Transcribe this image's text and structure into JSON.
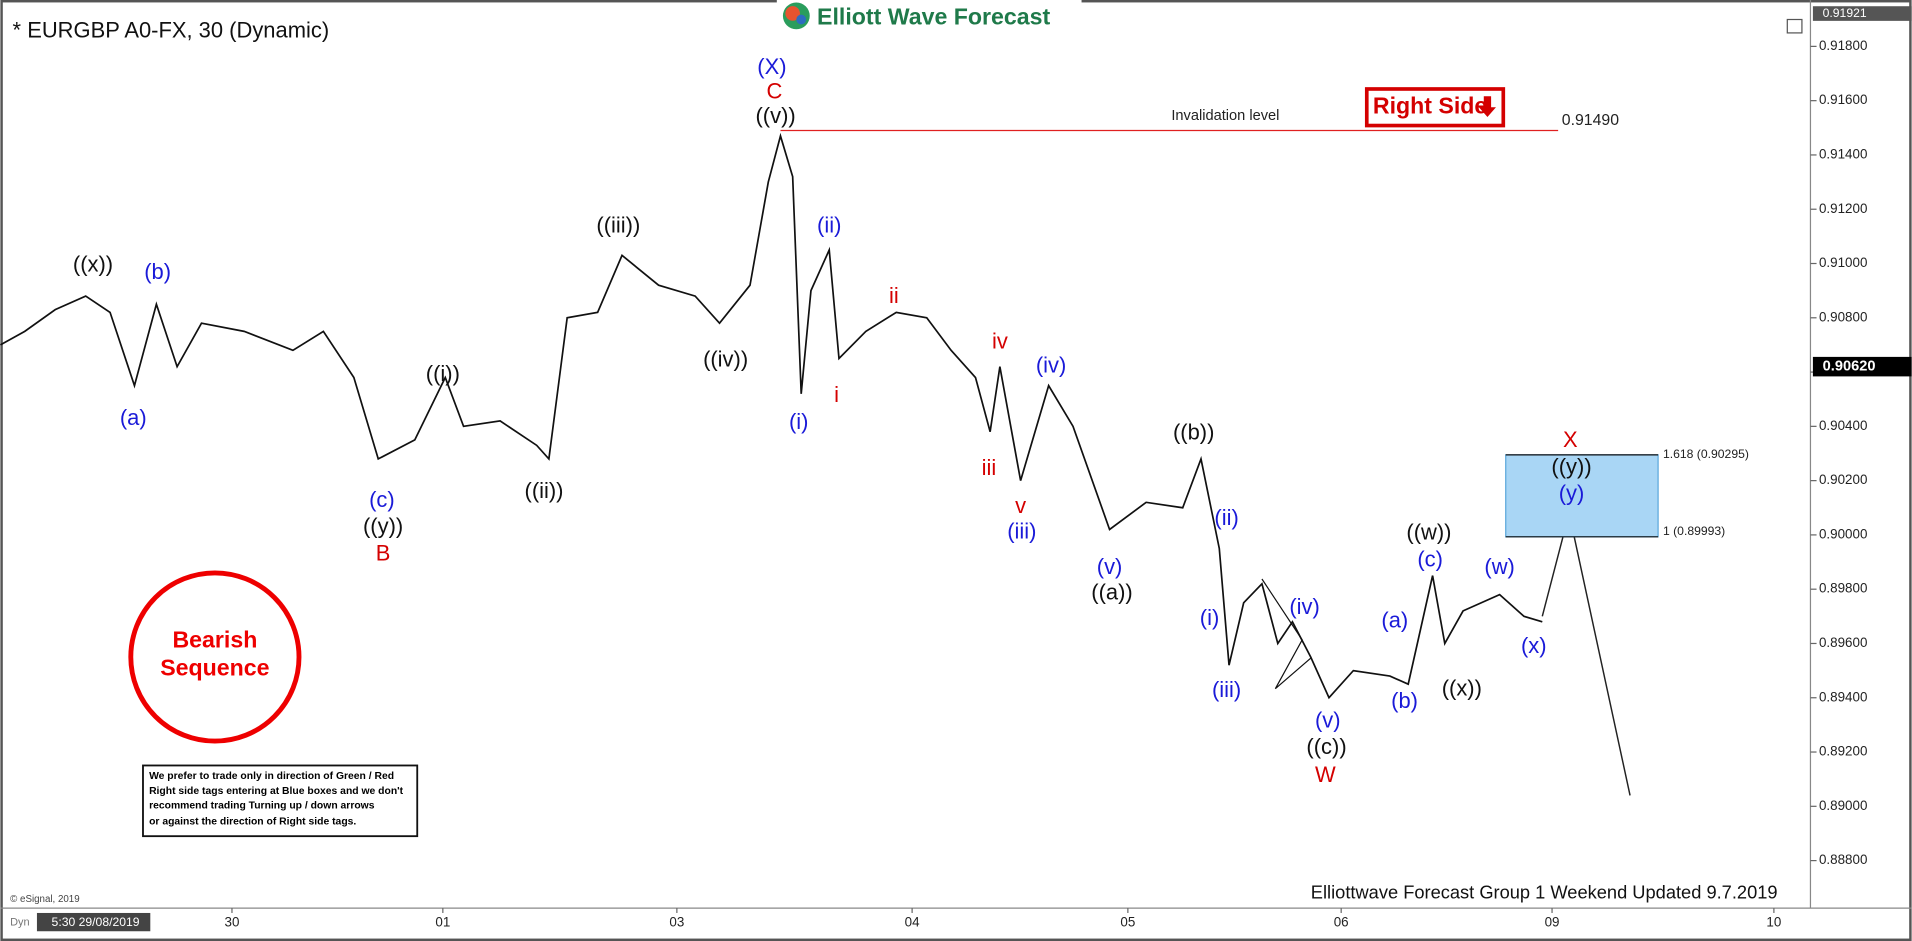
{
  "chart_data": {
    "type": "line",
    "title": "* EURGBP A0-FX, 30 (Dynamic)",
    "logo": "Elliott Wave Forecast",
    "xlim": [
      0,
      148.5
    ],
    "xticks": [
      {
        "value": 19.0,
        "label": "30"
      },
      {
        "value": 36.3,
        "label": "01"
      },
      {
        "value": 55.5,
        "label": "03"
      },
      {
        "value": 74.8,
        "label": "04"
      },
      {
        "value": 92.5,
        "label": "05"
      },
      {
        "value": 110.0,
        "label": "06"
      },
      {
        "value": 127.3,
        "label": "09"
      },
      {
        "value": 145.5,
        "label": "10"
      }
    ],
    "ylim": [
      0.88625,
      0.91926
    ],
    "yticks": [
      {
        "value": 0.888,
        "label": "0.88800"
      },
      {
        "value": 0.89,
        "label": "0.89000"
      },
      {
        "value": 0.892,
        "label": "0.89200"
      },
      {
        "value": 0.894,
        "label": "0.89400"
      },
      {
        "value": 0.896,
        "label": "0.89600"
      },
      {
        "value": 0.898,
        "label": "0.89800"
      },
      {
        "value": 0.9,
        "label": "0.90000"
      },
      {
        "value": 0.902,
        "label": "0.90200"
      },
      {
        "value": 0.904,
        "label": "0.90400"
      },
      {
        "value": 0.906,
        "label": "0.90600"
      },
      {
        "value": 0.908,
        "label": "0.90800"
      },
      {
        "value": 0.91,
        "label": "0.91000"
      },
      {
        "value": 0.912,
        "label": "0.91200"
      },
      {
        "value": 0.914,
        "label": "0.91400"
      },
      {
        "value": 0.916,
        "label": "0.91600"
      },
      {
        "value": 0.918,
        "label": "0.91800"
      }
    ],
    "series": [
      {
        "color": "#111111",
        "x": [
          0,
          2,
          4.5,
          7,
          9,
          11,
          12.8,
          14.5,
          16.5,
          20,
          24,
          26.5,
          29,
          31,
          34,
          36.5,
          38,
          41,
          44,
          45,
          46.5,
          49,
          51,
          54,
          57,
          59,
          61.5,
          63,
          64,
          65,
          65.7,
          66.5,
          68,
          68.8,
          71,
          73.5,
          76,
          78,
          80,
          81.2,
          82,
          83.7,
          86,
          88,
          91,
          94,
          97,
          98.5,
          100,
          100.8,
          102,
          103.5,
          104.8,
          106,
          107.5,
          109,
          111,
          114,
          115.5,
          117.5,
          118.5,
          120,
          123,
          125,
          126.5
        ],
        "values": [
          0.907,
          0.9075,
          0.9083,
          0.9088,
          0.9082,
          0.9055,
          0.9085,
          0.9062,
          0.9078,
          0.9075,
          0.9068,
          0.9075,
          0.9058,
          0.9028,
          0.9035,
          0.9058,
          0.904,
          0.9042,
          0.9033,
          0.9028,
          0.908,
          0.9082,
          0.9103,
          0.9092,
          0.9088,
          0.9078,
          0.9092,
          0.913,
          0.9147,
          0.9132,
          0.9052,
          0.909,
          0.9105,
          0.9065,
          0.9075,
          0.9082,
          0.908,
          0.9068,
          0.9058,
          0.9038,
          0.9062,
          0.902,
          0.9055,
          0.904,
          0.9002,
          0.9012,
          0.901,
          0.9028,
          0.8995,
          0.8952,
          0.8975,
          0.8982,
          0.896,
          0.8968,
          0.8955,
          0.894,
          0.895,
          0.8948,
          0.8945,
          0.8985,
          0.896,
          0.8972,
          0.8978,
          0.897,
          0.8968
        ]
      },
      {
        "color": "#222222",
        "x": [
          126.5,
          128.7,
          133.7
        ],
        "values": [
          0.897,
          0.9008,
          0.8904
        ]
      }
    ],
    "invalidation": {
      "value": 0.9149,
      "label": "0.91490",
      "text": "Invalidation level"
    },
    "target_box": {
      "top": {
        "value": 0.90295,
        "label": "1.618 (0.90295)"
      },
      "bottom": {
        "value": 0.89993,
        "label": "1 (0.89993)"
      },
      "color": "#a9d6f5"
    },
    "last_price": {
      "value": 0.9062,
      "label": "0.90620"
    },
    "top_price": 0.91921,
    "right_side": "Right Side",
    "sequence": [
      "Bearish",
      "Sequence"
    ],
    "note": [
      "We prefer to trade only in direction of Green / Red",
      "Right side tags entering at Blue boxes and we don't",
      "recommend trading Turning up / down arrows",
      "or against the direction of Right side tags."
    ],
    "copyright": "© eSignal, 2019",
    "footer": "Elliottwave Forecast Group 1 Weekend Updated 9.7.2019",
    "dyn": "Dyn",
    "cursor_time": "5:30 29/08/2019",
    "annotations": [
      "((x))",
      "(b)",
      "(a)",
      "(c)",
      "((y))",
      "B",
      "((i))",
      "((ii))",
      "((iii))",
      "((iv))",
      "(X)",
      "C",
      "((v))",
      "(i)",
      "(ii)",
      "i",
      "ii",
      "iv",
      "iii",
      "v",
      "(iii)",
      "(iv)",
      "(v)",
      "((a))",
      "((b))",
      "(ii)",
      "(i)",
      "(iii)",
      "(iv)",
      "(v)",
      "((c))",
      "W",
      "(a)",
      "(b)",
      "(c)",
      "((w))",
      "((x))",
      "(w)",
      "(x)",
      "X",
      "((y))",
      "(y)"
    ]
  }
}
